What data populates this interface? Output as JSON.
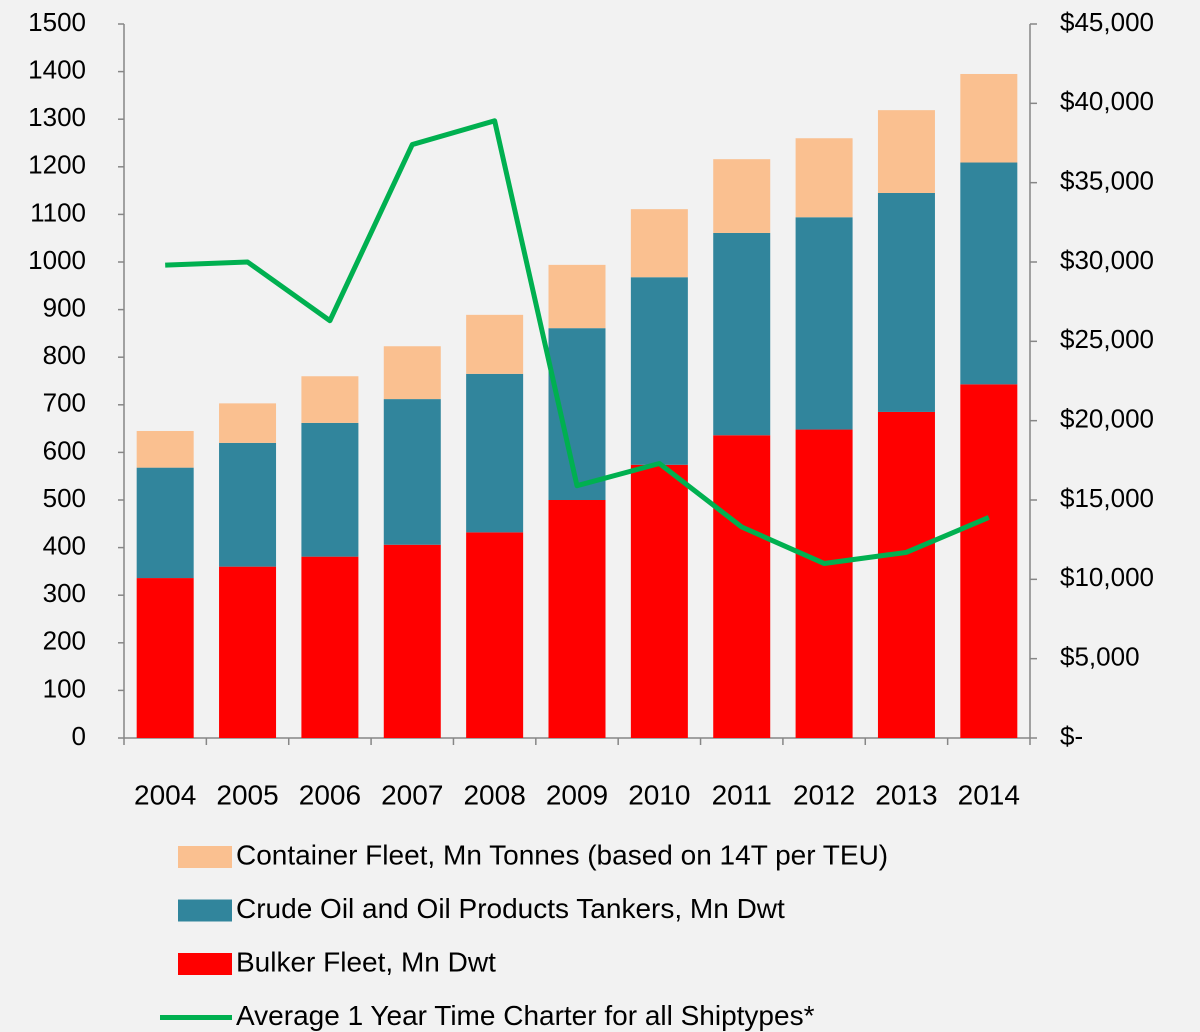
{
  "chart_data": {
    "type": "bar",
    "categories": [
      "2004",
      "2005",
      "2006",
      "2007",
      "2008",
      "2009",
      "2010",
      "2011",
      "2012",
      "2013",
      "2014"
    ],
    "series": [
      {
        "name": "Bulker Fleet, Mn Dwt",
        "color": "#ff0000",
        "values": [
          336,
          360,
          381,
          406,
          432,
          500,
          574,
          636,
          648,
          685,
          743
        ]
      },
      {
        "name": "Crude Oil and Oil Products Tankers, Mn Dwt",
        "color": "#31859c",
        "values": [
          232,
          260,
          281,
          306,
          333,
          361,
          394,
          425,
          446,
          460,
          466
        ]
      },
      {
        "name": "Container Fleet, Mn Tonnes (based on 14T per TEU)",
        "color": "#fac090",
        "values": [
          77,
          83,
          98,
          111,
          124,
          133,
          143,
          155,
          166,
          174,
          186
        ]
      },
      {
        "name": "Average 1 Year Time Charter for all Shiptypes*",
        "color": "#00b050",
        "type": "line",
        "axis": "y2",
        "values": [
          29800,
          30000,
          26300,
          37400,
          38900,
          15900,
          17300,
          13300,
          11000,
          11700,
          13900
        ]
      }
    ],
    "ylim": [
      0,
      1500
    ],
    "yticks": [
      0,
      100,
      200,
      300,
      400,
      500,
      600,
      700,
      800,
      900,
      1000,
      1100,
      1200,
      1300,
      1400,
      1500
    ],
    "y2lim": [
      0,
      45000
    ],
    "y2ticks": [
      {
        "value": 0,
        "label": "$-"
      },
      {
        "value": 5000,
        "label": "$5,000"
      },
      {
        "value": 10000,
        "label": "$10,000"
      },
      {
        "value": 15000,
        "label": "$15,000"
      },
      {
        "value": 20000,
        "label": "$20,000"
      },
      {
        "value": 25000,
        "label": "$25,000"
      },
      {
        "value": 30000,
        "label": "$30,000"
      },
      {
        "value": 35000,
        "label": "$35,000"
      },
      {
        "value": 40000,
        "label": "$40,000"
      },
      {
        "value": 45000,
        "label": "$45,000"
      }
    ],
    "grid": false,
    "legend": "bottom"
  }
}
